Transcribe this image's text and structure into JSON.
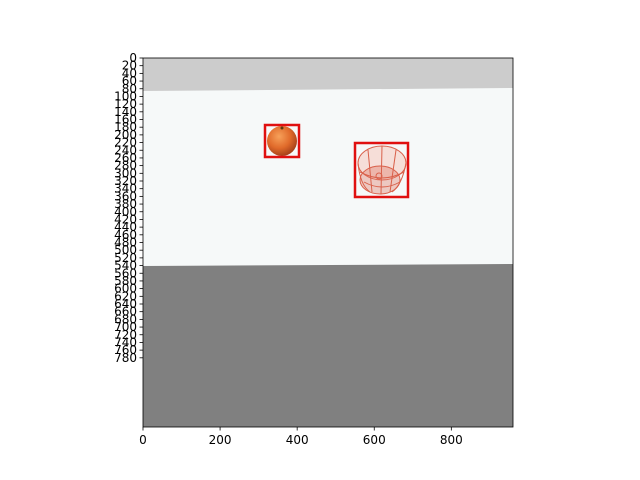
{
  "figure": {
    "x_ticks": [
      "0",
      "200",
      "400",
      "600",
      "800"
    ],
    "y_ticks": [
      "0",
      "20",
      "40",
      "60",
      "80",
      "100",
      "120",
      "140",
      "160",
      "180",
      "200",
      "220",
      "240",
      "260",
      "280",
      "300",
      "320",
      "340",
      "360",
      "380",
      "400",
      "420",
      "440",
      "460",
      "480",
      "500",
      "520",
      "540",
      "560",
      "580",
      "600",
      "620",
      "640",
      "660",
      "680",
      "700",
      "720",
      "740",
      "760",
      "780"
    ]
  },
  "scene": {
    "colors": {
      "wall_top": "#cccccc",
      "backsplash": "#f6f9f9",
      "table": "#808080",
      "bbox": "#e01010",
      "orange": "#e06a2a",
      "basket": "#d9604a"
    },
    "objects": [
      {
        "name": "orange",
        "icon": "orange-fruit-icon"
      },
      {
        "name": "basket",
        "icon": "wire-basket-icon"
      }
    ]
  }
}
